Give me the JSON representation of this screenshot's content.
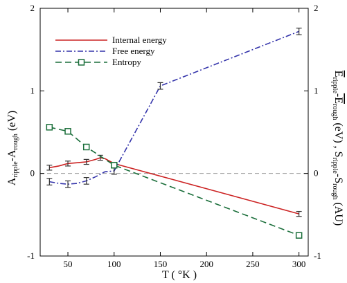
{
  "chart_data": {
    "type": "line",
    "title": "",
    "xlabel": "T ( °K )",
    "ylabel_left": {
      "main": "A",
      "sub1": "ripple",
      "mid": "-A",
      "sub2": "rough",
      "tail": " (eV)"
    },
    "ylabel_right": {
      "p1": "E",
      "s1": "ripple",
      "p2": "-E",
      "s2": "rough",
      "p3": " (eV) , S",
      "s3": "ripple",
      "p4": "-S",
      "s4": "rough",
      "p5": " (AU)"
    },
    "xlim": [
      20,
      310
    ],
    "ylim": [
      -1,
      2
    ],
    "x_ticks": [
      50,
      100,
      150,
      200,
      250,
      300
    ],
    "y_ticks": [
      -1,
      0,
      1,
      2
    ],
    "grid": false,
    "legend_position": "top-left",
    "series": [
      {
        "name": "Internal energy",
        "color": "#cc2222",
        "line_style": "solid",
        "marker": "none",
        "x": [
          30,
          40,
          50,
          60,
          70,
          80,
          85,
          90,
          100,
          300
        ],
        "y": [
          0.07,
          0.09,
          0.12,
          0.13,
          0.14,
          0.17,
          0.19,
          0.18,
          0.12,
          -0.49
        ],
        "error_bars_at": [
          30,
          50,
          70,
          85,
          300
        ],
        "error": 0.03
      },
      {
        "name": "Free energy",
        "color": "#3333aa",
        "line_style": "dashdot",
        "marker": "none",
        "x": [
          30,
          40,
          50,
          60,
          70,
          80,
          90,
          100,
          150,
          300
        ],
        "y": [
          -0.1,
          -0.12,
          -0.13,
          -0.12,
          -0.09,
          -0.04,
          0.02,
          0.03,
          1.06,
          1.72
        ],
        "error_bars_at": [
          30,
          50,
          70,
          100,
          150,
          300
        ],
        "error": 0.04
      },
      {
        "name": "Entropy",
        "color": "#1a6e3a",
        "line_style": "dashed",
        "marker": "square",
        "x": [
          30,
          50,
          70,
          100,
          300
        ],
        "y": [
          0.56,
          0.51,
          0.32,
          0.1,
          -0.75
        ]
      }
    ],
    "reference_line": {
      "y": 0,
      "color": "#999999",
      "style": "dashed"
    }
  }
}
